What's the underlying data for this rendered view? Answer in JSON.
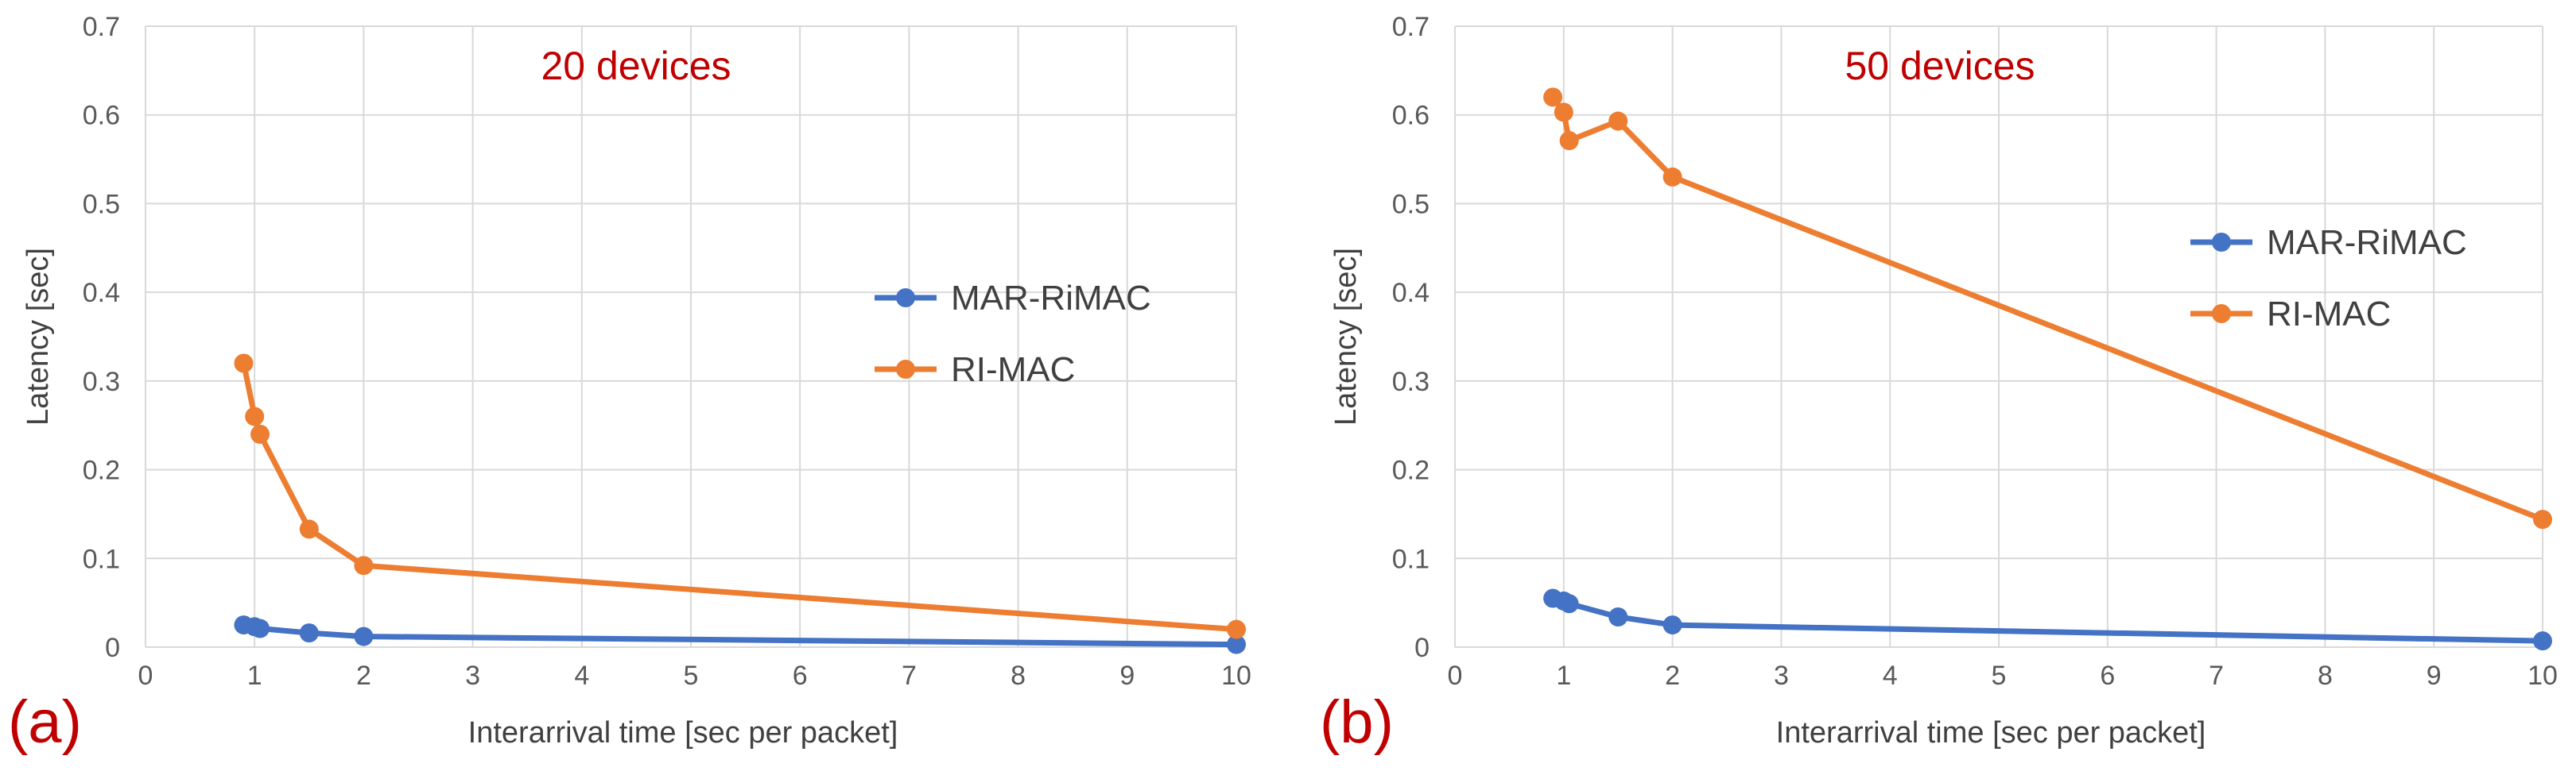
{
  "chart_data": [
    {
      "type": "line",
      "panel_label": "(a)",
      "title": "20 devices",
      "xlabel": "Interarrival time [sec per packet]",
      "ylabel": "Latency [sec]",
      "xlim": [
        0,
        10
      ],
      "ylim": [
        0,
        0.7
      ],
      "xticks": [
        "0",
        "1",
        "2",
        "3",
        "4",
        "5",
        "6",
        "7",
        "8",
        "9",
        "10"
      ],
      "yticks": [
        "0",
        "0.1",
        "0.2",
        "0.3",
        "0.4",
        "0.5",
        "0.6",
        "0.7"
      ],
      "grid": true,
      "legend_position": "center-right",
      "series": [
        {
          "name": "MAR-RiMAC",
          "color": "#4472c4",
          "x": [
            0.9,
            1.0,
            1.05,
            1.5,
            2,
            10
          ],
          "y": [
            0.025,
            0.023,
            0.021,
            0.016,
            0.012,
            0.003
          ]
        },
        {
          "name": "RI-MAC",
          "color": "#ed7d31",
          "x": [
            0.9,
            1.0,
            1.05,
            1.5,
            2,
            10
          ],
          "y": [
            0.32,
            0.26,
            0.24,
            0.133,
            0.092,
            0.02
          ]
        }
      ]
    },
    {
      "type": "line",
      "panel_label": "(b)",
      "title": "50 devices",
      "xlabel": "Interarrival time [sec per packet]",
      "ylabel": "Latency [sec]",
      "xlim": [
        0,
        10
      ],
      "ylim": [
        0,
        0.7
      ],
      "xticks": [
        "0",
        "1",
        "2",
        "3",
        "4",
        "5",
        "6",
        "7",
        "8",
        "9",
        "10"
      ],
      "yticks": [
        "0",
        "0.1",
        "0.2",
        "0.3",
        "0.4",
        "0.5",
        "0.6",
        "0.7"
      ],
      "grid": true,
      "legend_position": "top-right",
      "series": [
        {
          "name": "MAR-RiMAC",
          "color": "#4472c4",
          "x": [
            0.9,
            1.0,
            1.05,
            1.5,
            2,
            10
          ],
          "y": [
            0.055,
            0.052,
            0.049,
            0.034,
            0.025,
            0.007
          ]
        },
        {
          "name": "RI-MAC",
          "color": "#ed7d31",
          "x": [
            0.9,
            1.0,
            1.05,
            1.5,
            2,
            10
          ],
          "y": [
            0.62,
            0.603,
            0.571,
            0.593,
            0.53,
            0.144
          ]
        }
      ]
    }
  ]
}
